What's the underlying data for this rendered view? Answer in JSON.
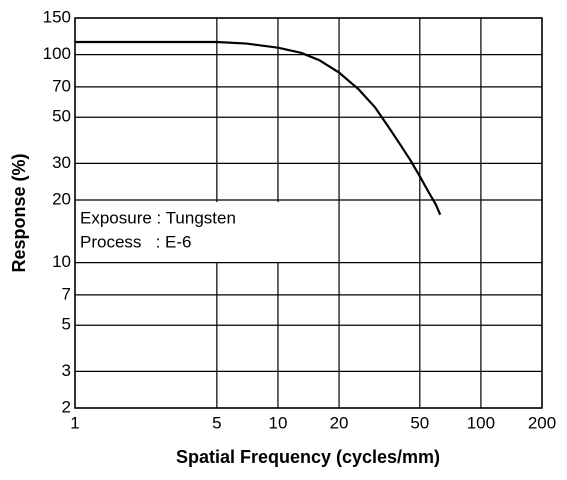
{
  "chart_data": {
    "type": "line",
    "xlabel": "Spatial Frequency (cycles/mm)",
    "ylabel": "Response (%)",
    "annotations": [
      "Exposure : Tungsten",
      "Process   : E-6"
    ],
    "x": [
      1,
      2,
      3,
      5,
      7,
      10,
      13,
      16,
      20,
      25,
      30,
      35,
      40,
      45,
      50,
      55,
      60,
      63
    ],
    "series": [
      {
        "name": "Response",
        "color": "#000000",
        "values": [
          115,
          115,
          115,
          115,
          113,
          108,
          102,
          94,
          82,
          68,
          56,
          45,
          37,
          31,
          26,
          22,
          19,
          17
        ]
      }
    ],
    "xlog": true,
    "ylog": true,
    "grid": true,
    "xlim": [
      1,
      200
    ],
    "xticks": [
      1,
      5,
      10,
      20,
      50,
      100,
      200
    ],
    "ylim": [
      2,
      150
    ],
    "yticks": [
      2,
      3,
      5,
      7,
      10,
      20,
      30,
      50,
      70,
      100,
      150
    ]
  }
}
